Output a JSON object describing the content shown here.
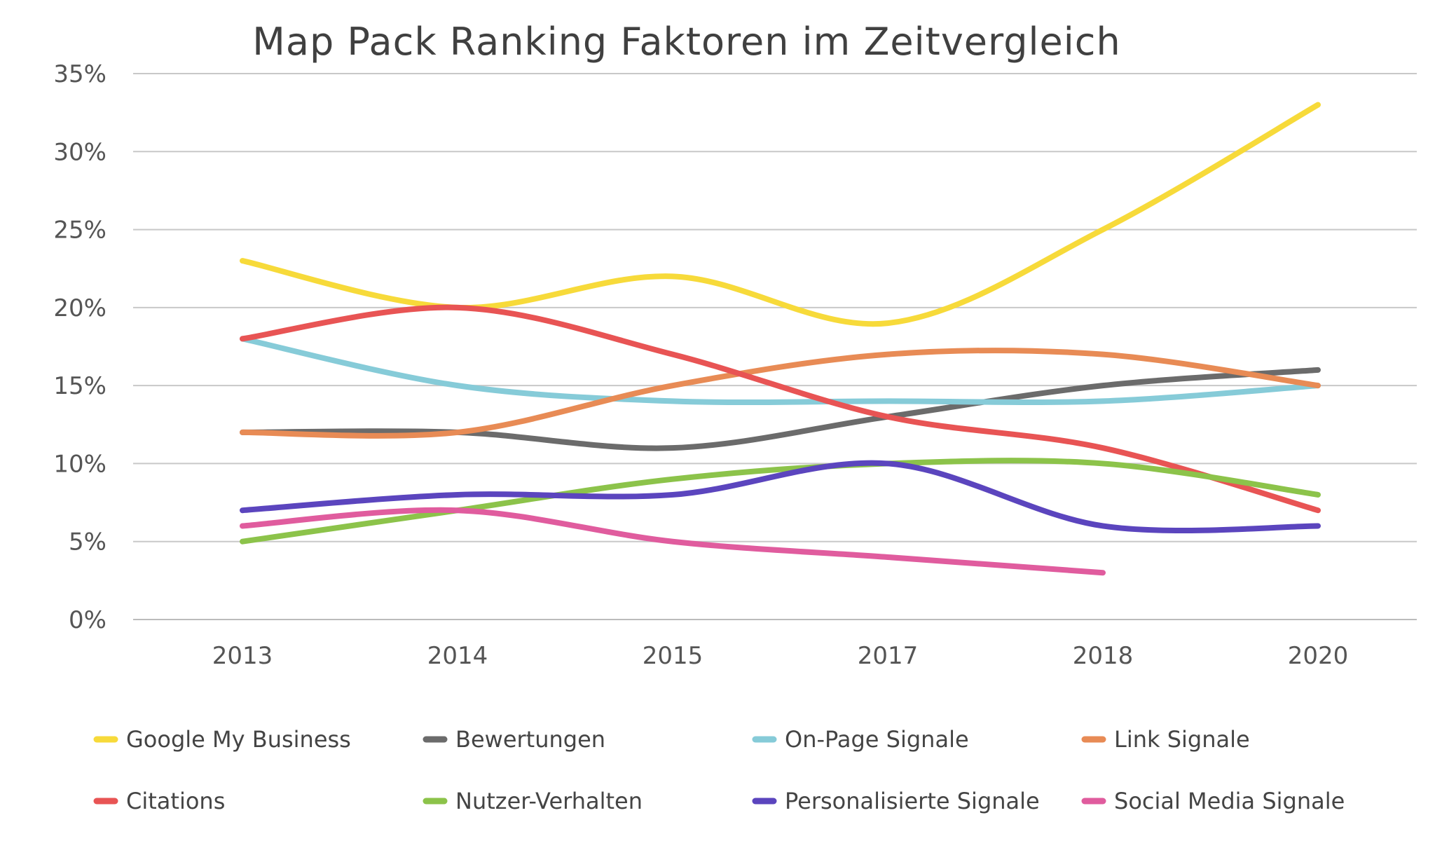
{
  "chart_data": {
    "type": "line",
    "title": "Map Pack Ranking Faktoren im Zeitvergleich",
    "xlabel": "",
    "ylabel": "",
    "categories": [
      "2013",
      "2014",
      "2015",
      "2017",
      "2018",
      "2020"
    ],
    "ylim": [
      0,
      35
    ],
    "yticks": [
      0,
      5,
      10,
      15,
      20,
      25,
      30,
      35
    ],
    "ytick_labels": [
      "0%",
      "5%",
      "10%",
      "15%",
      "20%",
      "25%",
      "30%",
      "35%"
    ],
    "grid": "horizontal",
    "legend_position": "bottom",
    "smooth": true,
    "series": [
      {
        "name": "Google My Business",
        "color": "#F7DA3A",
        "values": [
          23,
          20,
          22,
          19,
          25,
          33
        ]
      },
      {
        "name": "Bewertungen",
        "color": "#6B6B6B",
        "values": [
          12,
          12,
          11,
          13,
          15,
          16
        ]
      },
      {
        "name": "On-Page Signale",
        "color": "#86CBD8",
        "values": [
          18,
          15,
          14,
          14,
          14,
          15
        ]
      },
      {
        "name": "Link Signale",
        "color": "#E88B55",
        "values": [
          12,
          12,
          15,
          17,
          17,
          15
        ]
      },
      {
        "name": "Citations",
        "color": "#E85454",
        "values": [
          18,
          20,
          17,
          13,
          11,
          7
        ]
      },
      {
        "name": "Nutzer-Verhalten",
        "color": "#8CC34A",
        "values": [
          5,
          7,
          9,
          10,
          10,
          8
        ]
      },
      {
        "name": "Personalisierte Signale",
        "color": "#5B45BE",
        "values": [
          7,
          8,
          8,
          10,
          6,
          6
        ]
      },
      {
        "name": "Social Media Signale",
        "color": "#E05C9E",
        "values": [
          6,
          7,
          5,
          4,
          3,
          null
        ]
      }
    ]
  }
}
